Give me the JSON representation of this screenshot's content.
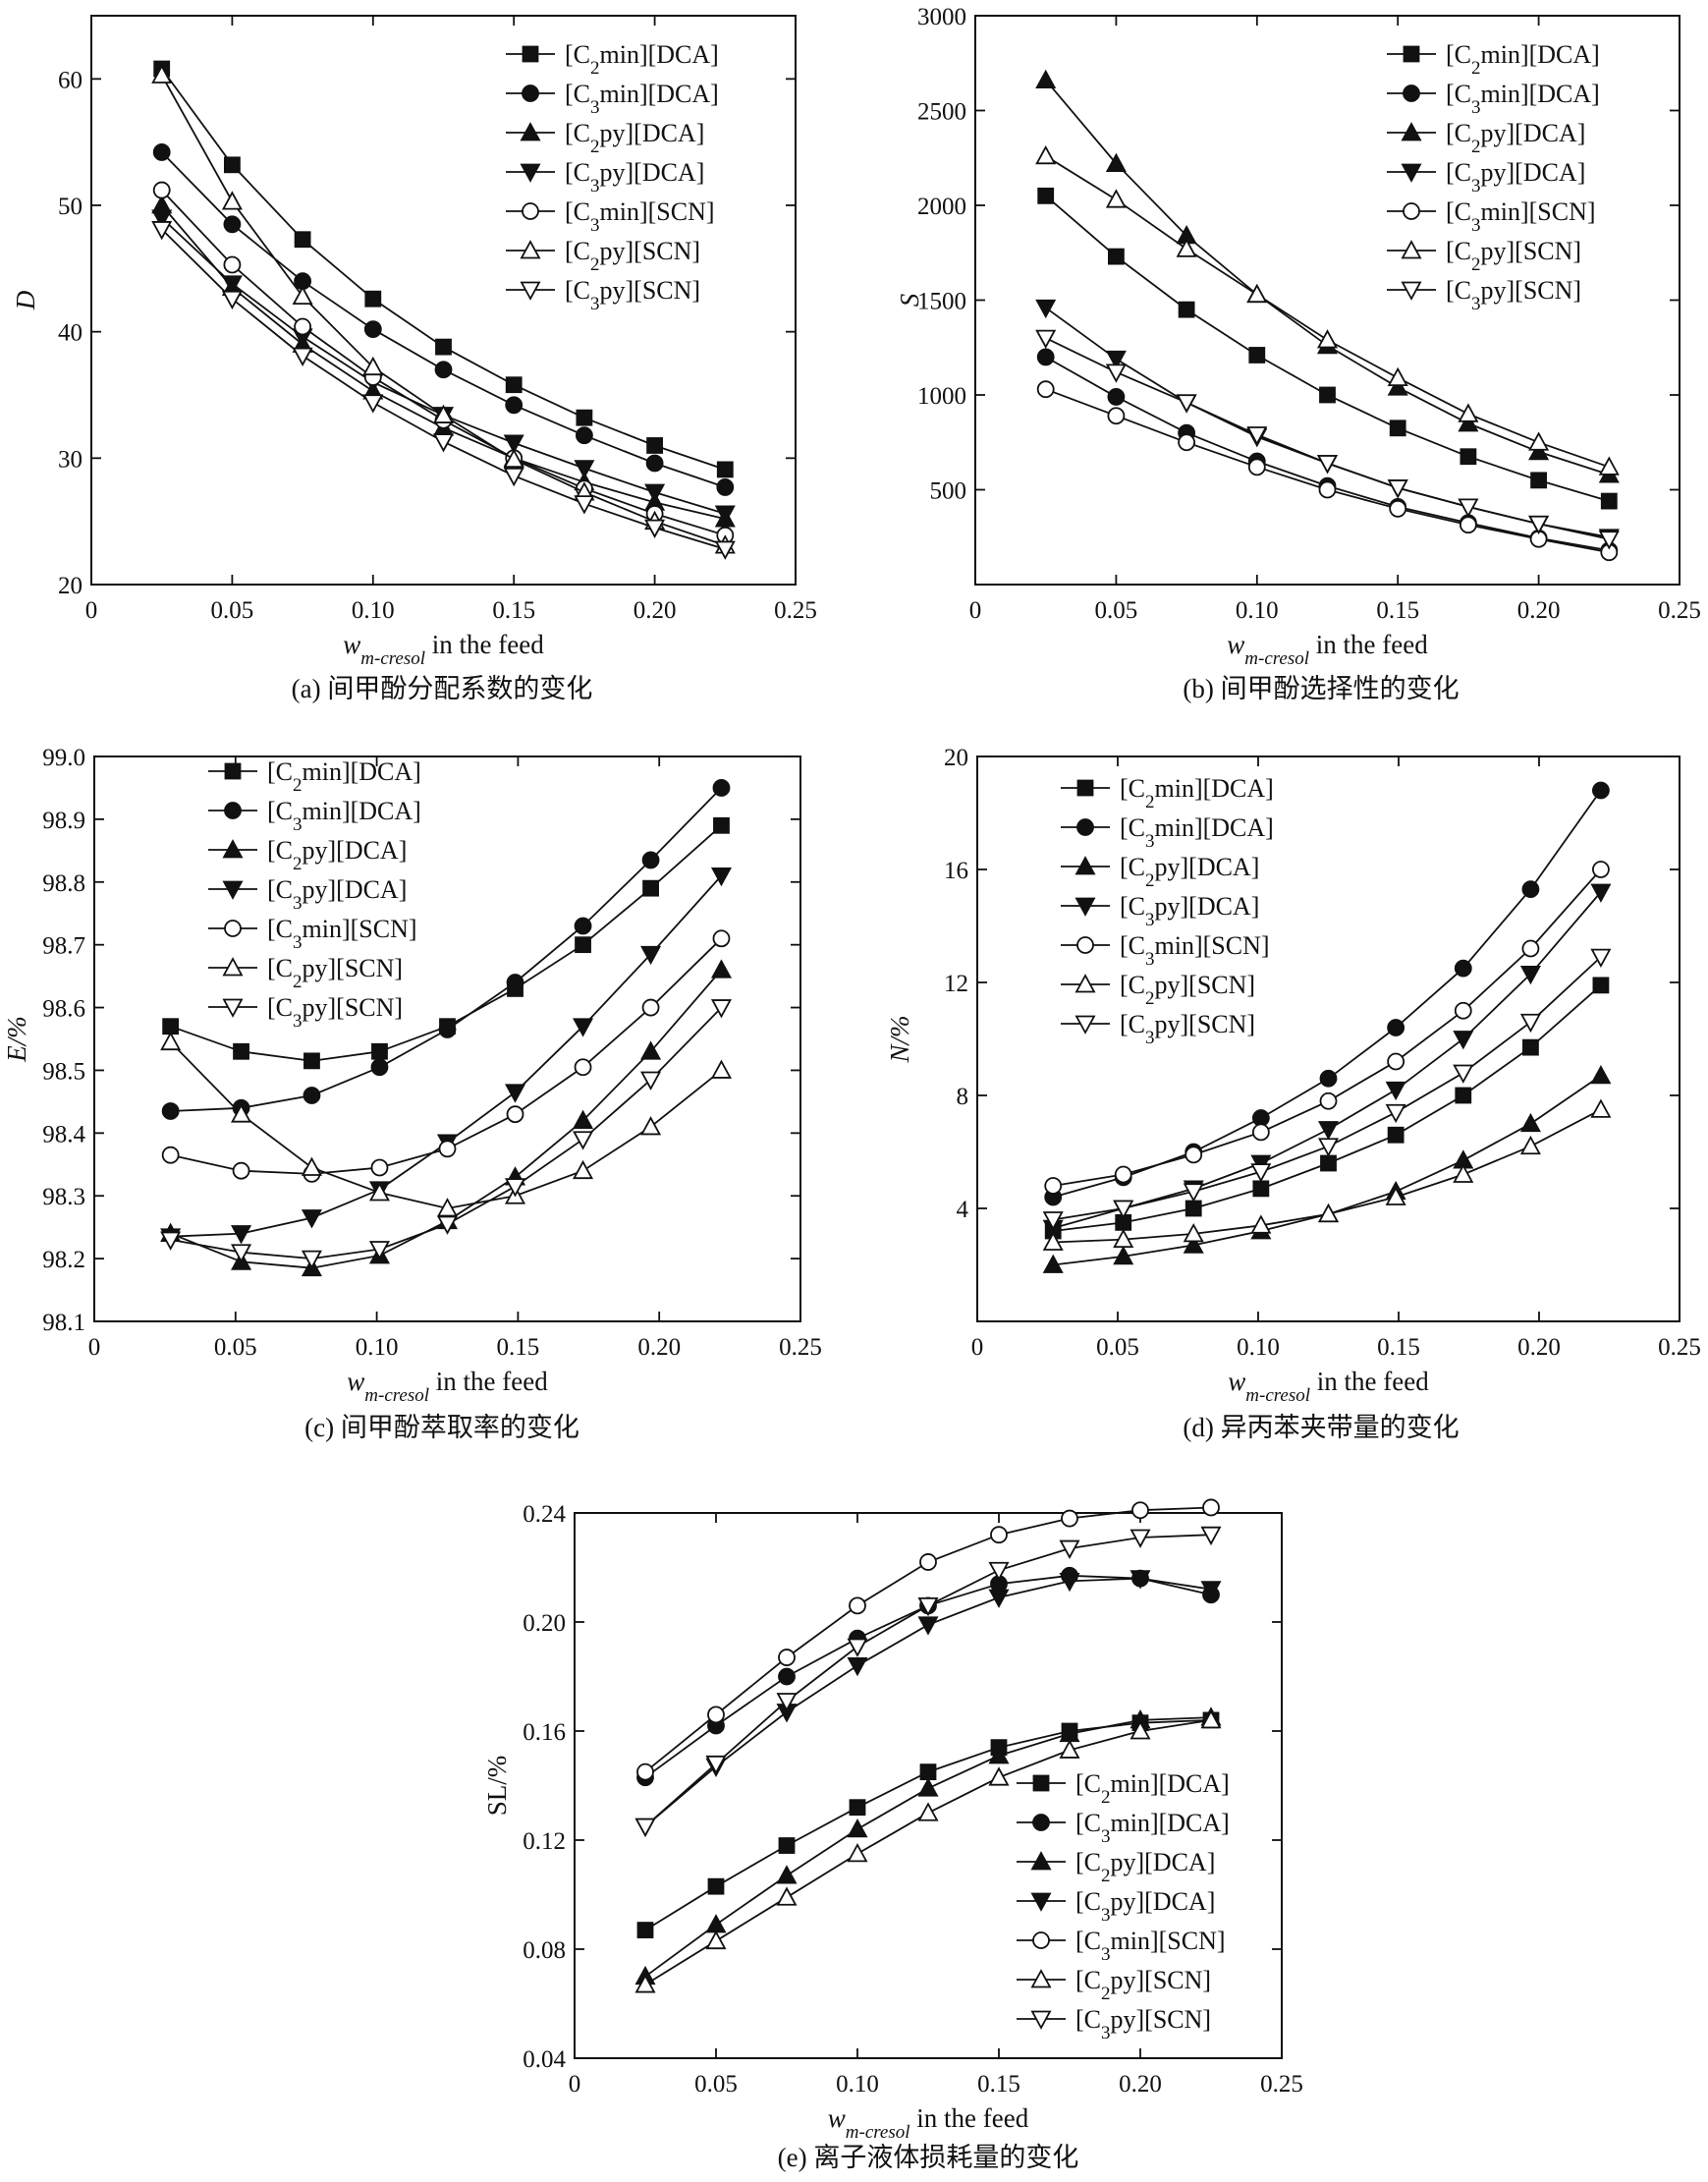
{
  "figure": {
    "xlabel_var": "w",
    "xlabel_sub": "m-cresol",
    "xlabel_rest": " in the feed",
    "series_names": [
      "[C2min][DCA]",
      "[C3min][DCA]",
      "[C2py][DCA]",
      "[C3py][DCA]",
      "[C3min][SCN]",
      "[C2py][SCN]",
      "[C3py][SCN]"
    ],
    "markers": [
      "square-filled",
      "circle-filled",
      "triangle-up-filled",
      "triangle-down-filled",
      "circle-open",
      "triangle-up-open",
      "triangle-down-open"
    ],
    "colors": {
      "line": "#111111",
      "background": "#ffffff"
    }
  },
  "chart_data": [
    {
      "id": "a",
      "type": "line",
      "caption": "(a) 间甲酚分配系数的变化",
      "ylabel": "D",
      "xlim": [
        0,
        0.25
      ],
      "ylim": [
        20,
        65
      ],
      "xticks": [
        "0",
        "0.05",
        "0.10",
        "0.15",
        "0.20",
        "0.25"
      ],
      "yticks": [
        "20",
        "30",
        "40",
        "50",
        "60"
      ],
      "legend_position": "top-right",
      "x": [
        0.025,
        0.05,
        0.075,
        0.1,
        0.125,
        0.15,
        0.175,
        0.2,
        0.225
      ],
      "series": [
        {
          "name": "[C2min][DCA]",
          "values": [
            60.8,
            53.2,
            47.3,
            42.6,
            38.8,
            35.8,
            33.2,
            31.0,
            29.1
          ]
        },
        {
          "name": "[C3min][DCA]",
          "values": [
            54.2,
            48.5,
            44.0,
            40.2,
            37.0,
            34.2,
            31.8,
            29.6,
            27.7
          ]
        },
        {
          "name": "[C2py][DCA]",
          "values": [
            50.0,
            43.5,
            39.0,
            35.3,
            32.4,
            30.0,
            28.1,
            26.5,
            25.2
          ]
        },
        {
          "name": "[C3py][DCA]",
          "values": [
            49.0,
            43.8,
            39.6,
            36.0,
            33.4,
            31.2,
            29.2,
            27.3,
            25.6
          ]
        },
        {
          "name": "[C3min][SCN]",
          "values": [
            51.2,
            45.3,
            40.4,
            36.4,
            33.0,
            30.0,
            27.6,
            25.6,
            23.9
          ]
        },
        {
          "name": "[C2py][SCN]",
          "values": [
            60.3,
            50.3,
            42.8,
            37.2,
            33.4,
            29.9,
            27.3,
            25.0,
            23.1
          ]
        },
        {
          "name": "[C3py][SCN]",
          "values": [
            48.1,
            42.6,
            38.1,
            34.4,
            31.3,
            28.6,
            26.4,
            24.5,
            22.8
          ]
        }
      ]
    },
    {
      "id": "b",
      "type": "line",
      "caption": "(b) 间甲酚选择性的变化",
      "ylabel": "S",
      "xlim": [
        0,
        0.25
      ],
      "ylim": [
        0,
        3000
      ],
      "xticks": [
        "0",
        "0.05",
        "0.10",
        "0.15",
        "0.20",
        "0.25"
      ],
      "yticks": [
        "500",
        "1000",
        "1500",
        "2000",
        "2500",
        "3000"
      ],
      "legend_position": "top-right",
      "x": [
        0.025,
        0.05,
        0.075,
        0.1,
        0.125,
        0.15,
        0.175,
        0.2,
        0.225
      ],
      "series": [
        {
          "name": "[C2min][DCA]",
          "values": [
            2050,
            1730,
            1450,
            1210,
            1000,
            825,
            675,
            550,
            440
          ]
        },
        {
          "name": "[C3min][DCA]",
          "values": [
            1200,
            990,
            800,
            650,
            520,
            410,
            325,
            245,
            180
          ]
        },
        {
          "name": "[C2py][DCA]",
          "values": [
            2660,
            2220,
            1840,
            1530,
            1260,
            1040,
            850,
            700,
            580
          ]
        },
        {
          "name": "[C3py][DCA]",
          "values": [
            1460,
            1190,
            960,
            780,
            640,
            510,
            410,
            320,
            250
          ]
        },
        {
          "name": "[C3min][SCN]",
          "values": [
            1030,
            890,
            750,
            620,
            500,
            400,
            315,
            240,
            170
          ]
        },
        {
          "name": "[C2py][SCN]",
          "values": [
            2260,
            2030,
            1770,
            1530,
            1290,
            1090,
            900,
            750,
            620
          ]
        },
        {
          "name": "[C3py][SCN]",
          "values": [
            1300,
            1120,
            960,
            790,
            640,
            510,
            410,
            320,
            240
          ]
        }
      ]
    },
    {
      "id": "c",
      "type": "line",
      "caption": "(c) 间甲酚萃取率的变化",
      "ylabel": "E/%",
      "xlim": [
        0,
        0.25
      ],
      "ylim": [
        98.1,
        99.0
      ],
      "xticks": [
        "0",
        "0.05",
        "0.10",
        "0.15",
        "0.20",
        "0.25"
      ],
      "yticks": [
        "98.1",
        "98.2",
        "98.3",
        "98.4",
        "98.5",
        "98.6",
        "98.7",
        "98.8",
        "98.9",
        "99.0"
      ],
      "legend_position": "top-left",
      "x": [
        0.027,
        0.052,
        0.077,
        0.101,
        0.125,
        0.149,
        0.173,
        0.197,
        0.222
      ],
      "series": [
        {
          "name": "[C2min][DCA]",
          "values": [
            98.57,
            98.53,
            98.515,
            98.53,
            98.57,
            98.63,
            98.7,
            98.79,
            98.89
          ]
        },
        {
          "name": "[C3min][DCA]",
          "values": [
            98.435,
            98.44,
            98.46,
            98.505,
            98.565,
            98.64,
            98.73,
            98.835,
            98.95
          ]
        },
        {
          "name": "[C2py][DCA]",
          "values": [
            98.24,
            98.195,
            98.185,
            98.205,
            98.26,
            98.33,
            98.42,
            98.53,
            98.66
          ]
        },
        {
          "name": "[C3py][DCA]",
          "values": [
            98.235,
            98.24,
            98.265,
            98.31,
            98.385,
            98.465,
            98.57,
            98.685,
            98.81
          ]
        },
        {
          "name": "[C3min][SCN]",
          "values": [
            98.365,
            98.34,
            98.335,
            98.345,
            98.375,
            98.43,
            98.505,
            98.6,
            98.71
          ]
        },
        {
          "name": "[C2py][SCN]",
          "values": [
            98.545,
            98.43,
            98.345,
            98.305,
            98.28,
            98.3,
            98.34,
            98.41,
            98.5
          ]
        },
        {
          "name": "[C3py][SCN]",
          "values": [
            98.23,
            98.21,
            98.2,
            98.215,
            98.255,
            98.315,
            98.39,
            98.485,
            98.6
          ]
        }
      ]
    },
    {
      "id": "d",
      "type": "line",
      "caption": "(d) 异丙苯夹带量的变化",
      "ylabel": "N/%",
      "xlim": [
        0,
        0.25
      ],
      "ylim": [
        0,
        20
      ],
      "xticks": [
        "0",
        "0.05",
        "0.10",
        "0.15",
        "0.20",
        "0.25"
      ],
      "yticks": [
        "4",
        "8",
        "12",
        "16",
        "20"
      ],
      "legend_position": "top-left",
      "x": [
        0.027,
        0.052,
        0.077,
        0.101,
        0.125,
        0.149,
        0.173,
        0.197,
        0.222
      ],
      "series": [
        {
          "name": "[C2min][DCA]",
          "values": [
            3.2,
            3.5,
            4.0,
            4.7,
            5.6,
            6.6,
            8.0,
            9.7,
            11.9
          ]
        },
        {
          "name": "[C3min][DCA]",
          "values": [
            4.4,
            5.1,
            6.0,
            7.2,
            8.6,
            10.4,
            12.5,
            15.3,
            18.8
          ]
        },
        {
          "name": "[C2py][DCA]",
          "values": [
            2.0,
            2.3,
            2.7,
            3.2,
            3.8,
            4.6,
            5.7,
            7.0,
            8.7
          ]
        },
        {
          "name": "[C3py][DCA]",
          "values": [
            3.3,
            4.0,
            4.7,
            5.6,
            6.8,
            8.2,
            10.0,
            12.3,
            15.2
          ]
        },
        {
          "name": "[C3min][SCN]",
          "values": [
            4.8,
            5.2,
            5.9,
            6.7,
            7.8,
            9.2,
            11.0,
            13.2,
            16.0
          ]
        },
        {
          "name": "[C2py][SCN]",
          "values": [
            2.8,
            2.9,
            3.1,
            3.4,
            3.8,
            4.4,
            5.2,
            6.2,
            7.5
          ]
        },
        {
          "name": "[C3py][SCN]",
          "values": [
            3.6,
            4.0,
            4.6,
            5.3,
            6.2,
            7.4,
            8.8,
            10.6,
            12.9
          ]
        }
      ]
    },
    {
      "id": "e",
      "type": "line",
      "caption": "(e) 离子液体损耗量的变化",
      "ylabel": "SL/%",
      "xlim": [
        0,
        0.25
      ],
      "ylim": [
        0.04,
        0.24
      ],
      "xticks": [
        "0",
        "0.05",
        "0.10",
        "0.15",
        "0.20",
        "0.25"
      ],
      "yticks": [
        "0.04",
        "0.08",
        "0.12",
        "0.16",
        "0.20",
        "0.24"
      ],
      "legend_position": "bottom-right",
      "x": [
        0.025,
        0.05,
        0.075,
        0.1,
        0.125,
        0.15,
        0.175,
        0.2,
        0.225
      ],
      "series": [
        {
          "name": "[C2min][DCA]",
          "values": [
            0.087,
            0.103,
            0.118,
            0.132,
            0.145,
            0.154,
            0.16,
            0.163,
            0.164
          ]
        },
        {
          "name": "[C3min][DCA]",
          "values": [
            0.143,
            0.162,
            0.18,
            0.194,
            0.206,
            0.214,
            0.217,
            0.216,
            0.21
          ]
        },
        {
          "name": "[C2py][DCA]",
          "values": [
            0.07,
            0.089,
            0.107,
            0.124,
            0.139,
            0.151,
            0.159,
            0.164,
            0.165
          ]
        },
        {
          "name": "[C3py][DCA]",
          "values": [
            0.125,
            0.147,
            0.167,
            0.184,
            0.199,
            0.209,
            0.215,
            0.216,
            0.212
          ]
        },
        {
          "name": "[C3min][SCN]",
          "values": [
            0.145,
            0.166,
            0.187,
            0.206,
            0.222,
            0.232,
            0.238,
            0.241,
            0.242
          ]
        },
        {
          "name": "[C2py][SCN]",
          "values": [
            0.067,
            0.083,
            0.099,
            0.115,
            0.13,
            0.143,
            0.153,
            0.16,
            0.164
          ]
        },
        {
          "name": "[C3py][SCN]",
          "values": [
            0.125,
            0.148,
            0.171,
            0.191,
            0.206,
            0.219,
            0.227,
            0.231,
            0.232
          ]
        }
      ]
    }
  ]
}
